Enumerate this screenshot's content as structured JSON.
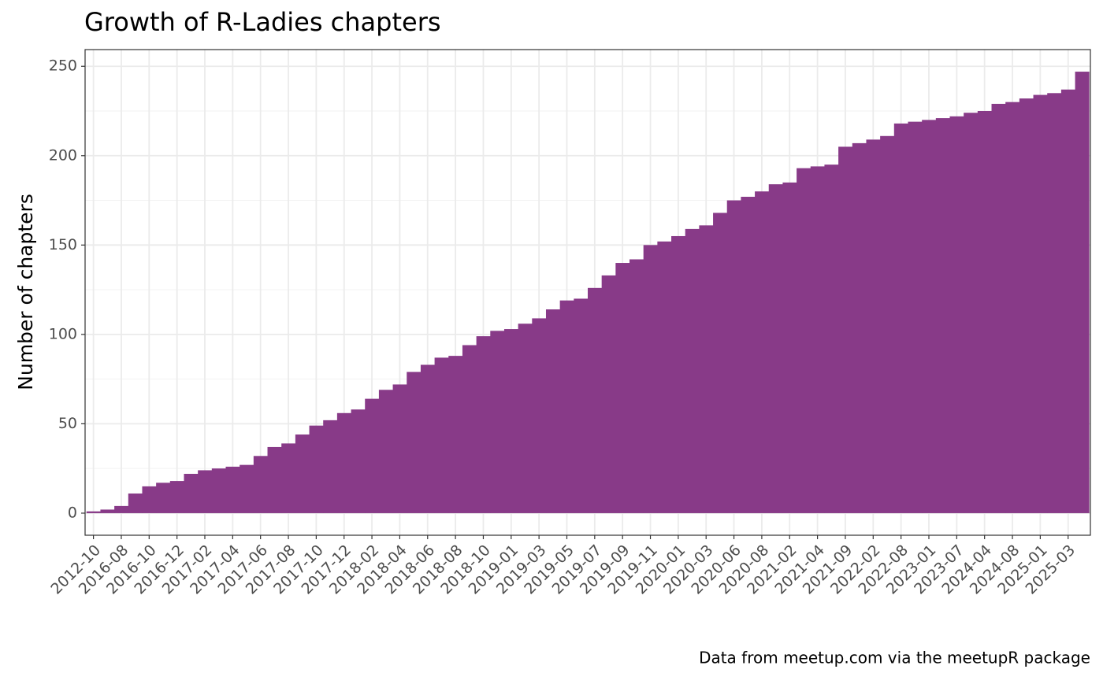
{
  "chart_data": {
    "type": "bar",
    "title": "Growth of R-Ladies chapters",
    "y_label": "Number of chapters",
    "caption": "Data from meetup.com via the meetupR package",
    "categories": [
      "2012-10",
      null,
      "2016-08",
      null,
      "2016-10",
      null,
      "2016-12",
      null,
      "2017-02",
      null,
      "2017-04",
      null,
      "2017-06",
      null,
      "2017-08",
      null,
      "2017-10",
      null,
      "2017-12",
      null,
      "2018-02",
      null,
      "2018-04",
      null,
      "2018-06",
      null,
      "2018-08",
      null,
      "2018-10",
      null,
      "2019-01",
      null,
      "2019-03",
      null,
      "2019-05",
      null,
      "2019-07",
      null,
      "2019-09",
      null,
      "2019-11",
      null,
      "2020-01",
      null,
      "2020-03",
      null,
      "2020-06",
      null,
      "2020-08",
      null,
      "2021-02",
      null,
      "2021-04",
      null,
      "2021-09",
      null,
      "2022-02",
      null,
      "2022-08",
      null,
      "2023-01",
      null,
      "2023-07",
      null,
      "2024-04",
      null,
      "2024-08",
      null,
      "2025-01",
      null,
      "2025-03",
      null
    ],
    "values": [
      1,
      2,
      4,
      11,
      15,
      17,
      18,
      22,
      24,
      25,
      26,
      27,
      32,
      37,
      39,
      44,
      49,
      52,
      56,
      58,
      64,
      69,
      72,
      79,
      83,
      87,
      88,
      94,
      99,
      102,
      103,
      106,
      109,
      114,
      119,
      120,
      126,
      133,
      140,
      142,
      150,
      152,
      155,
      159,
      161,
      168,
      175,
      177,
      180,
      184,
      185,
      193,
      194,
      195,
      205,
      207,
      209,
      211,
      218,
      219,
      220,
      221,
      222,
      224,
      225,
      229,
      230,
      232,
      234,
      235,
      237,
      247
    ],
    "color": "#883a88",
    "ylim": [
      -12.35,
      259.35
    ],
    "yticks": [
      0,
      50,
      100,
      150,
      200,
      250
    ],
    "grid": true
  }
}
